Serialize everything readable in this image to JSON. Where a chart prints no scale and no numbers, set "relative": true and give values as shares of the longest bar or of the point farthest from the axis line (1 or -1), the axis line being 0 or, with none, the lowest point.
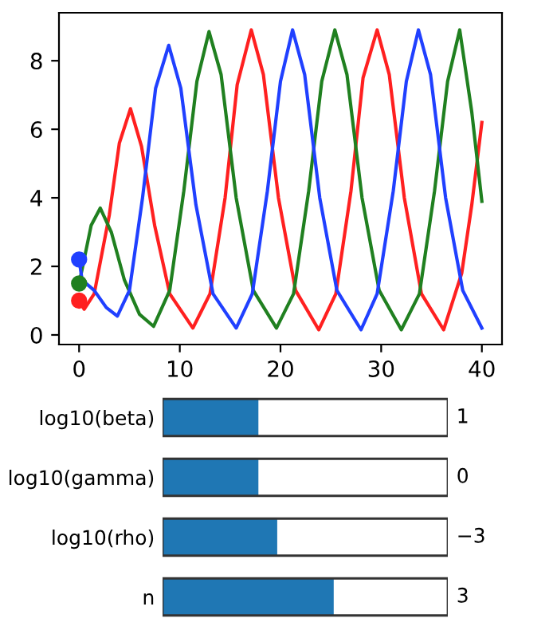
{
  "chart_data": [
    {
      "type": "line",
      "xlim": [
        -2,
        42
      ],
      "ylim": [
        -0.28,
        9.4
      ],
      "xticks": [
        0,
        10,
        20,
        30,
        40
      ],
      "yticks": [
        0,
        2,
        4,
        6,
        8
      ],
      "grid": false,
      "legend": false,
      "marker": "none",
      "line_style": "solid",
      "series": [
        {
          "color": "#ff2020",
          "x": [
            0,
            0.5,
            1.5,
            3,
            4,
            5.1,
            6.2,
            7.5,
            9,
            11.3,
            13,
            14.5,
            15.7,
            17.1,
            18.3,
            19.8,
            21.5,
            23.8,
            25.5,
            27,
            28.2,
            29.6,
            30.8,
            32.3,
            34,
            36.2,
            38,
            39,
            40
          ],
          "values": [
            1.0,
            0.75,
            1.2,
            3.5,
            5.6,
            6.6,
            5.5,
            3.2,
            1.2,
            0.2,
            1.2,
            4.0,
            7.3,
            8.9,
            7.6,
            4.0,
            1.3,
            0.15,
            1.2,
            4.2,
            7.5,
            8.9,
            7.6,
            4.0,
            1.2,
            0.15,
            1.8,
            3.8,
            6.2
          ]
        },
        {
          "color": "#208020",
          "x": [
            0,
            0.5,
            1.2,
            2.1,
            3.2,
            4.5,
            6,
            7.4,
            9,
            10.4,
            11.7,
            12.9,
            14.1,
            15.6,
            17.3,
            19.6,
            21.3,
            22.8,
            24.1,
            25.4,
            26.6,
            28.1,
            29.8,
            32,
            33.8,
            35.3,
            36.6,
            37.8,
            39,
            40
          ],
          "values": [
            1.5,
            2.2,
            3.2,
            3.7,
            3.0,
            1.6,
            0.6,
            0.25,
            1.3,
            4.2,
            7.4,
            8.85,
            7.6,
            4.0,
            1.3,
            0.2,
            1.2,
            4.2,
            7.4,
            8.9,
            7.6,
            4.0,
            1.3,
            0.15,
            1.2,
            4.2,
            7.4,
            8.9,
            6.5,
            3.9
          ]
        },
        {
          "color": "#2040ff",
          "x": [
            0,
            0.3,
            1.5,
            2.7,
            3.8,
            5,
            6.3,
            7.6,
            8.9,
            10.1,
            11.6,
            13.3,
            15.6,
            17.2,
            18.7,
            20,
            21.2,
            22.4,
            23.9,
            25.6,
            28,
            29.6,
            31.2,
            32.5,
            33.7,
            34.9,
            36.4,
            38.1,
            40
          ],
          "values": [
            2.2,
            1.6,
            1.3,
            0.8,
            0.55,
            1.3,
            4.0,
            7.2,
            8.45,
            7.2,
            3.8,
            1.2,
            0.2,
            1.2,
            4.2,
            7.4,
            8.9,
            7.6,
            4.0,
            1.3,
            0.15,
            1.2,
            4.2,
            7.4,
            8.9,
            7.6,
            4.0,
            1.3,
            0.2
          ]
        },
        {
          "type": "scatter",
          "marker": "circle",
          "color": "#ff2020",
          "x": [
            0
          ],
          "values": [
            1.0
          ]
        },
        {
          "type": "scatter",
          "marker": "circle",
          "color": "#208020",
          "x": [
            0
          ],
          "values": [
            1.5
          ]
        },
        {
          "type": "scatter",
          "marker": "circle",
          "color": "#2040ff",
          "x": [
            0
          ],
          "values": [
            2.2
          ]
        }
      ]
    },
    {
      "type": "bar",
      "orientation": "horizontal",
      "relative": true,
      "color": "#1f77b4",
      "categories": [
        "log10(beta)",
        "log10(gamma)",
        "log10(rho)",
        "n"
      ],
      "values": [
        0.56,
        0.56,
        0.67,
        1
      ],
      "annotations": [
        "1",
        "0",
        "−3",
        "3"
      ]
    }
  ]
}
